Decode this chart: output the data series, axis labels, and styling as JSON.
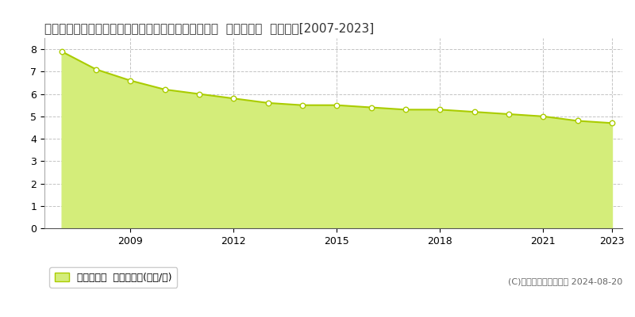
{
  "title": "熊本県球磨郡多良木町大字多良木字下新地５５５番２  基準地価格  地価推移[2007-2023]",
  "years": [
    2007,
    2008,
    2009,
    2010,
    2011,
    2012,
    2013,
    2014,
    2015,
    2016,
    2017,
    2018,
    2019,
    2020,
    2021,
    2022,
    2023
  ],
  "values": [
    7.9,
    7.1,
    6.6,
    6.2,
    6.0,
    5.8,
    5.6,
    5.5,
    5.5,
    5.4,
    5.3,
    5.3,
    5.2,
    5.1,
    5.0,
    4.8,
    4.7
  ],
  "line_color": "#aacc00",
  "fill_color": "#d4ed7a",
  "marker_color": "#ffffff",
  "marker_edge_color": "#aacc00",
  "background_color": "#ffffff",
  "grid_color": "#aaaaaa",
  "legend_label": "基準地価格  平均坪単価(万円/坪)",
  "copyright_text": "(C)土地価格ドットコム 2024-08-20",
  "ylim": [
    0,
    8.5
  ],
  "yticks": [
    0,
    1,
    2,
    3,
    4,
    5,
    6,
    7,
    8
  ],
  "xticks": [
    2009,
    2012,
    2015,
    2018,
    2021,
    2023
  ],
  "title_fontsize": 11,
  "legend_fontsize": 9,
  "tick_fontsize": 9
}
